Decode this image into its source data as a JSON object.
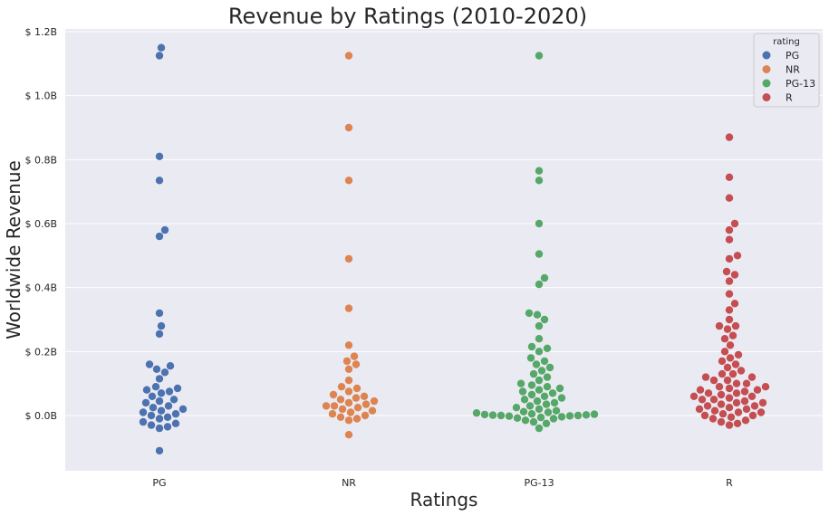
{
  "chart_data": {
    "type": "scatter",
    "title": "Revenue by Ratings (2010-2020)",
    "xlabel": "Ratings",
    "ylabel": "Worldwide Revenue",
    "ylim": [
      -0.17,
      1.2
    ],
    "grid": true,
    "categories": [
      "PG",
      "NR",
      "PG-13",
      "R"
    ],
    "yticks": [
      0.0,
      0.2,
      0.4,
      0.6,
      0.8,
      1.0,
      1.2
    ],
    "ytick_labels": [
      "$ 0.0B",
      "$ 0.2B",
      "$ 0.4B",
      "$ 0.6B",
      "$ 0.8B",
      "$ 1.0B",
      "$ 1.2B"
    ],
    "legend": {
      "title": "rating",
      "placement": "top-right",
      "entries": [
        {
          "label": "PG",
          "color": "#4c72b0"
        },
        {
          "label": "NR",
          "color": "#dd8452"
        },
        {
          "label": "PG-13",
          "color": "#55a868"
        },
        {
          "label": "R",
          "color": "#c44e52"
        }
      ]
    },
    "series": [
      {
        "category": "PG",
        "color": "#4c72b0",
        "values": [
          1.15,
          1.125,
          0.81,
          0.735,
          0.58,
          0.56,
          0.32,
          0.28,
          0.255,
          0.16,
          0.155,
          0.145,
          0.135,
          0.115,
          0.09,
          0.085,
          0.08,
          0.075,
          0.07,
          0.06,
          0.05,
          0.045,
          0.04,
          0.03,
          0.025,
          0.02,
          0.015,
          0.01,
          0.005,
          0.0,
          -0.005,
          -0.01,
          -0.02,
          -0.025,
          -0.03,
          -0.035,
          -0.04,
          -0.11
        ]
      },
      {
        "category": "NR",
        "color": "#dd8452",
        "values": [
          1.125,
          0.9,
          0.735,
          0.49,
          0.335,
          0.22,
          0.185,
          0.17,
          0.16,
          0.145,
          0.11,
          0.09,
          0.085,
          0.075,
          0.065,
          0.06,
          0.055,
          0.05,
          0.045,
          0.04,
          0.035,
          0.03,
          0.03,
          0.025,
          0.02,
          0.015,
          0.01,
          0.005,
          0.0,
          -0.005,
          -0.01,
          -0.015,
          -0.06
        ]
      },
      {
        "category": "PG-13",
        "color": "#55a868",
        "values": [
          1.125,
          0.765,
          0.735,
          0.6,
          0.505,
          0.43,
          0.41,
          0.32,
          0.315,
          0.3,
          0.28,
          0.24,
          0.215,
          0.21,
          0.2,
          0.18,
          0.17,
          0.16,
          0.15,
          0.14,
          0.13,
          0.12,
          0.11,
          0.1,
          0.095,
          0.09,
          0.085,
          0.08,
          0.075,
          0.07,
          0.065,
          0.06,
          0.055,
          0.05,
          0.045,
          0.04,
          0.035,
          0.03,
          0.025,
          0.02,
          0.015,
          0.012,
          0.01,
          0.008,
          0.005,
          0.004,
          0.003,
          0.002,
          0.001,
          0.0,
          0.0,
          -0.001,
          -0.002,
          -0.004,
          -0.006,
          -0.008,
          -0.01,
          -0.015,
          -0.02,
          -0.025,
          -0.04
        ]
      },
      {
        "category": "R",
        "color": "#c44e52",
        "values": [
          0.87,
          0.745,
          0.68,
          0.6,
          0.58,
          0.55,
          0.5,
          0.49,
          0.45,
          0.44,
          0.42,
          0.38,
          0.35,
          0.33,
          0.3,
          0.28,
          0.28,
          0.27,
          0.25,
          0.24,
          0.22,
          0.2,
          0.19,
          0.18,
          0.17,
          0.16,
          0.15,
          0.14,
          0.13,
          0.13,
          0.12,
          0.12,
          0.11,
          0.11,
          0.1,
          0.1,
          0.09,
          0.09,
          0.085,
          0.08,
          0.08,
          0.075,
          0.07,
          0.07,
          0.065,
          0.06,
          0.06,
          0.055,
          0.05,
          0.05,
          0.045,
          0.04,
          0.04,
          0.035,
          0.03,
          0.03,
          0.025,
          0.02,
          0.02,
          0.015,
          0.01,
          0.01,
          0.005,
          0.0,
          0.0,
          -0.005,
          -0.01,
          -0.015,
          -0.02,
          -0.025,
          -0.03
        ]
      }
    ]
  }
}
